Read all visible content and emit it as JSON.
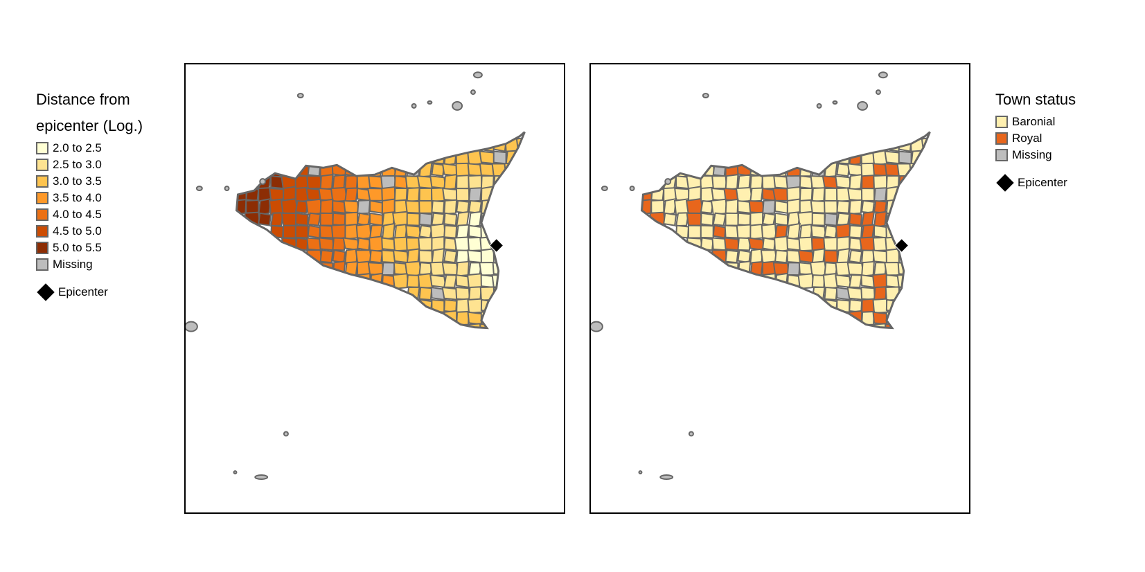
{
  "left_legend": {
    "title_line1": "Distance from",
    "title_line2": "epicenter (Log.)",
    "items": [
      {
        "label": "2.0 to 2.5",
        "color": "#ffffd4"
      },
      {
        "label": "2.5 to 3.0",
        "color": "#fee391"
      },
      {
        "label": "3.0 to 3.5",
        "color": "#fec44f"
      },
      {
        "label": "3.5 to 4.0",
        "color": "#fe9929"
      },
      {
        "label": "4.0 to 4.5",
        "color": "#ec7014"
      },
      {
        "label": "4.5 to 5.0",
        "color": "#cc4c02"
      },
      {
        "label": "5.0 to 5.5",
        "color": "#8c2d04"
      },
      {
        "label": "Missing",
        "color": "#bdbdbd"
      }
    ],
    "epicenter_label": "Epicenter"
  },
  "right_legend": {
    "title": "Town status",
    "items": [
      {
        "label": "Baronial",
        "color": "#fff0b0"
      },
      {
        "label": "Royal",
        "color": "#e8661c"
      },
      {
        "label": "Missing",
        "color": "#bdbdbd"
      }
    ],
    "epicenter_label": "Epicenter"
  },
  "colors": {
    "border": "#666666",
    "epicenter": "#000000"
  }
}
